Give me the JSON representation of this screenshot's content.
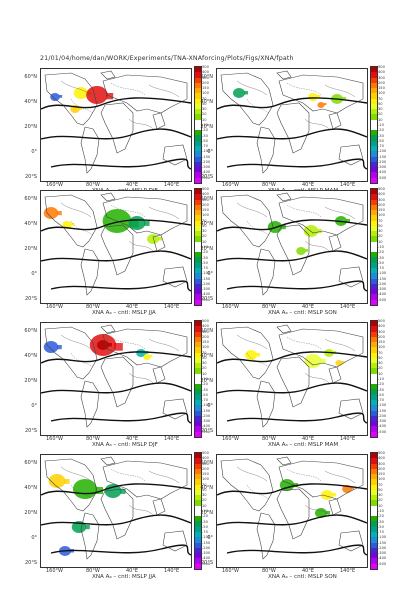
{
  "header": {
    "path_text": "21/01/04/home/dan/WORK/Experiments/TNA-XNAforcing/Plots/Figs/XNA/fpath"
  },
  "lat_labels": [
    "60°N",
    "40°N",
    "20°N",
    "0°",
    "20°S"
  ],
  "lon_labels": [
    "160°W",
    "80°W",
    "40°E",
    "140°E"
  ],
  "colorbar": {
    "labels": [
      "500",
      "400",
      "300",
      "200",
      "150",
      "100",
      "70",
      "50",
      "30",
      "20",
      "10",
      "-10",
      "-20",
      "-30",
      "-50",
      "-70",
      "-100",
      "-150",
      "-200",
      "-300",
      "-400",
      "-500"
    ],
    "colors": [
      "#b40000",
      "#e01010",
      "#ff3a00",
      "#ff7800",
      "#ffa800",
      "#ffd000",
      "#fff200",
      "#e6ff33",
      "#b4f000",
      "#80dc00",
      "#ffffff",
      "#ffffff",
      "#22b000",
      "#00a050",
      "#00a08c",
      "#00b4b4",
      "#1c8cdc",
      "#2c5adc",
      "#4628d2",
      "#7800e6",
      "#b400f0",
      "#e000ff"
    ]
  },
  "panels": [
    {
      "caption": "XNA Aₐ – cntl: MSLP DJF"
    },
    {
      "caption": "XNA Aₐ – cntl: MSLP MAM"
    },
    {
      "caption": "XNA Aₐ – cntl: MSLP JJA"
    },
    {
      "caption": "XNA Aₐ – cntl: MSLP SON"
    },
    {
      "caption": "XNA Aₐ – cntl: MSLP DJF"
    },
    {
      "caption": "XNA Aₐ – cntl: MSLP MAM"
    },
    {
      "caption": "XNA Aₐ – cntl: MSLP JJA"
    },
    {
      "caption": "XNA Aₐ – cntl: MSLP SON"
    }
  ],
  "icons": {
    "coastline": "coastline-icon",
    "contours": "contour-lines-icon"
  }
}
